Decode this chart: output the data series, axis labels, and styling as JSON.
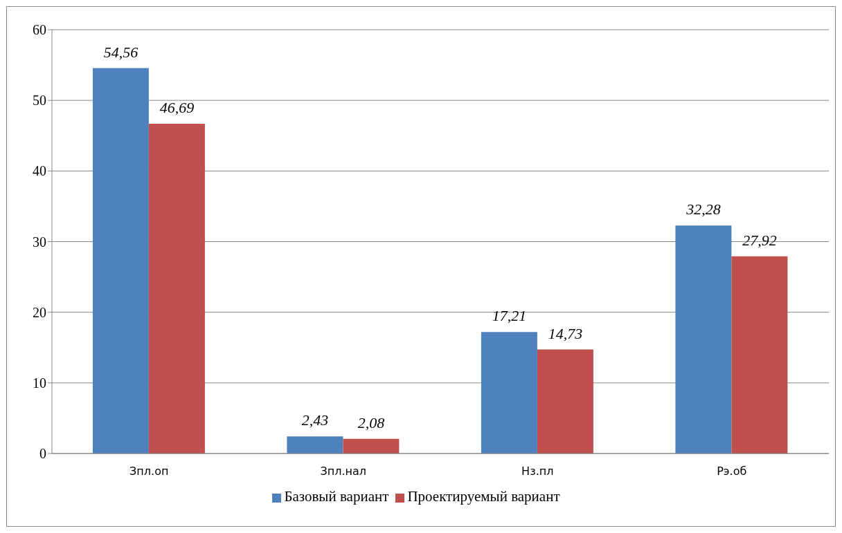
{
  "chart_data": {
    "type": "bar",
    "categories": [
      "Зпл.оп",
      "Зпл.нал",
      "Нз.пл",
      "Рэ.об"
    ],
    "series": [
      {
        "name": "Базовый вариант",
        "color": "#4f81bd",
        "values": [
          54.56,
          2.43,
          17.21,
          32.28
        ],
        "value_labels": [
          "54,56",
          "2,43",
          "17,21",
          "32,28"
        ]
      },
      {
        "name": "Проектируемый вариант",
        "color": "#c0504d",
        "values": [
          46.69,
          2.08,
          14.73,
          27.92
        ],
        "value_labels": [
          "46,69",
          "2,08",
          "14,73",
          "27,92"
        ]
      }
    ],
    "ylim": [
      0,
      60
    ],
    "yticks": [
      0,
      10,
      20,
      30,
      40,
      50,
      60
    ],
    "grid": "y",
    "legend": "bottom"
  }
}
